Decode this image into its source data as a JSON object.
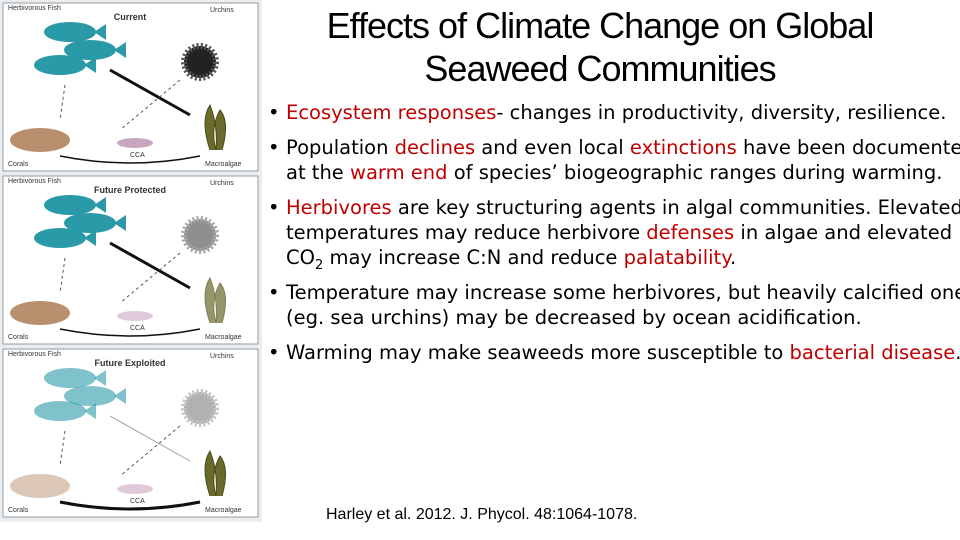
{
  "title": [
    "Effects of Climate Change on Global",
    "Seaweed Communities"
  ],
  "figure": {
    "panels": [
      {
        "heading": "Current",
        "labels": [
          "Herbivorous Fish",
          "Urchins",
          "Corals",
          "CCA",
          "Macroalgae"
        ]
      },
      {
        "heading": "Future Protected",
        "labels": [
          "Herbivorous Fish",
          "Urchins",
          "Corals",
          "CCA",
          "Macroalgae"
        ]
      },
      {
        "heading": "Future Exploited",
        "labels": [
          "Herbivorous Fish",
          "Urchins",
          "Corals",
          "CCA",
          "Macroalgae"
        ]
      }
    ]
  },
  "bullets": [
    [
      {
        "text": "Ecosystem responses",
        "color": "#c00000"
      },
      {
        "text": "- changes in productivity, diversity, resilience."
      }
    ],
    [
      {
        "text": "Population "
      },
      {
        "text": "declines",
        "color": "#c00000"
      },
      {
        "text": " and even local "
      },
      {
        "text": "extinctions",
        "color": "#c00000"
      },
      {
        "text": " have been documented at the "
      },
      {
        "text": "warm end",
        "color": "#c00000"
      },
      {
        "text": " of species’ biogeographic ranges during warming."
      }
    ],
    [
      {
        "text": "Herbivores",
        "color": "#c00000"
      },
      {
        "text": " are key structuring agents in algal communities. Elevated temperatures may reduce herbivore "
      },
      {
        "text": "defenses",
        "color": "#c00000"
      },
      {
        "text": " in algae and elevated CO"
      },
      {
        "text": "2",
        "sub": true
      },
      {
        "text": " may increase C:N and reduce "
      },
      {
        "text": "palatability",
        "color": "#c00000"
      },
      {
        "text": "."
      }
    ],
    [
      {
        "text": "Temperature may increase some herbivores, but heavily calcified ones (eg. sea urchins) may be decreased by ocean acidification."
      }
    ],
    [
      {
        "text": "Warming may make seaweeds more susceptible to "
      },
      {
        "text": "bacterial disease",
        "color": "#c00000"
      },
      {
        "text": "."
      }
    ]
  ],
  "citation": "Harley et al. 2012.  J. Phycol.  48:1064-1078."
}
